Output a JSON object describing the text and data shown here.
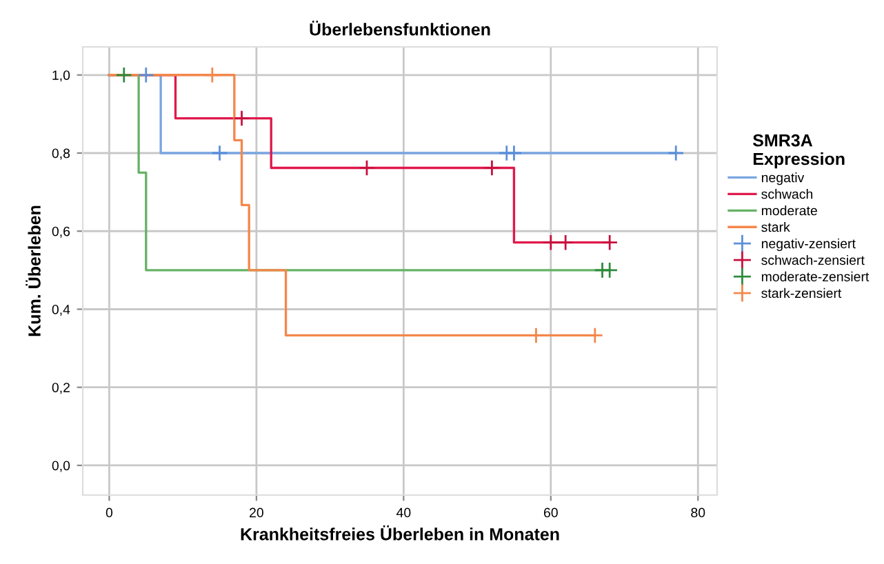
{
  "chart_data": {
    "type": "step",
    "title": "Überlebensfunktionen",
    "xlabel": "Krankheitsfreies Überleben in Monaten",
    "ylabel": "Kum. Überleben",
    "legend_title": "SMR3A\nExpression",
    "xlim": [
      -3.6,
      82.6
    ],
    "ylim": [
      -0.076,
      1.072
    ],
    "xticks": [
      0,
      20,
      40,
      60,
      80
    ],
    "yticks": [
      {
        "value": 0.0,
        "label": "0,0"
      },
      {
        "value": 0.2,
        "label": "0,2"
      },
      {
        "value": 0.4,
        "label": "0,4"
      },
      {
        "value": 0.6,
        "label": "0,6"
      },
      {
        "value": 0.8,
        "label": "0,8"
      },
      {
        "value": 1.0,
        "label": "1,0"
      }
    ],
    "grid": true,
    "legend": "right",
    "series": [
      {
        "name": "negativ",
        "color": "#7aa6e0",
        "x": [
          0,
          7,
          77
        ],
        "values": [
          1.0,
          0.8,
          0.8
        ]
      },
      {
        "name": "schwach",
        "color": "#e0194b",
        "x": [
          0,
          9,
          22,
          55,
          68
        ],
        "values": [
          1.0,
          0.889,
          0.762,
          0.571,
          0.571
        ]
      },
      {
        "name": "moderate",
        "color": "#66b266",
        "x": [
          0,
          4,
          5,
          68
        ],
        "values": [
          1.0,
          0.75,
          0.5,
          0.5
        ]
      },
      {
        "name": "stark",
        "color": "#f4874b",
        "x": [
          0,
          17,
          18,
          19,
          24,
          66
        ],
        "values": [
          1.0,
          0.833,
          0.667,
          0.5,
          0.333,
          0.333
        ]
      },
      {
        "name": "negativ-zensiert",
        "type": "scatter",
        "marker": "cross",
        "color": "#5b8fd9",
        "x": [
          5,
          15,
          54,
          55,
          77
        ],
        "values": [
          1.0,
          0.8,
          0.8,
          0.8,
          0.8
        ]
      },
      {
        "name": "schwach-zensiert",
        "type": "scatter",
        "marker": "cross",
        "color": "#c8103e",
        "x": [
          18,
          35,
          52,
          60,
          62,
          68
        ],
        "values": [
          0.889,
          0.762,
          0.762,
          0.571,
          0.571,
          0.571
        ]
      },
      {
        "name": "moderate-zensiert",
        "type": "scatter",
        "marker": "cross",
        "color": "#2e8b3e",
        "x": [
          2,
          67,
          68
        ],
        "values": [
          1.0,
          0.5,
          0.5
        ]
      },
      {
        "name": "stark-zensiert",
        "type": "scatter",
        "marker": "cross",
        "color": "#f4874b",
        "x": [
          14,
          58,
          66
        ],
        "values": [
          1.0,
          0.333,
          0.333
        ]
      }
    ]
  }
}
